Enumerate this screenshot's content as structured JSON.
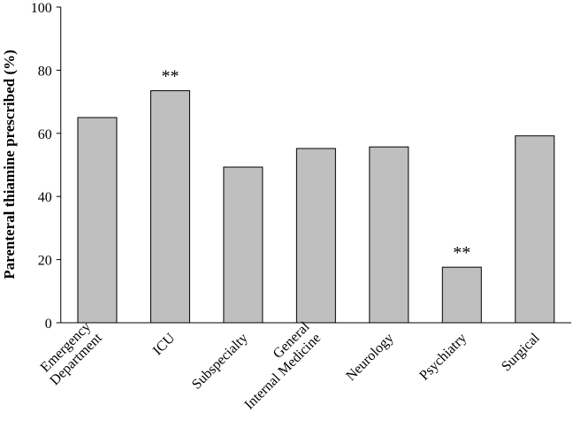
{
  "chart_data": {
    "type": "bar",
    "y_label": "Parenteral thiamine prescribed (%)",
    "categories": [
      "Emergency\nDepartment",
      "ICU",
      "Subspecialty",
      "General\nInternal Medicine",
      "Neurology",
      "Psychiatry",
      "Surgical"
    ],
    "values": [
      65,
      73.5,
      49.3,
      55.2,
      55.7,
      17.6,
      59.2
    ],
    "color": "#bfbfbf",
    "ylim": [
      0,
      100
    ],
    "yticks": [
      0,
      20,
      40,
      60,
      80,
      100
    ],
    "grid": false,
    "annotations": [
      {
        "label": "**",
        "category": "ICU"
      },
      {
        "label": "**",
        "category": "Psychiatry"
      }
    ]
  }
}
